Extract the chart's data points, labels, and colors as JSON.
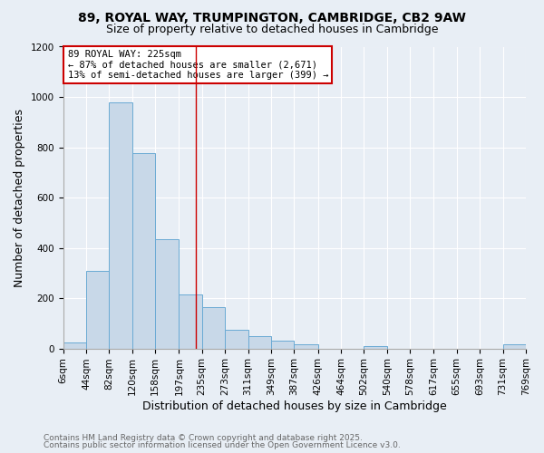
{
  "title1": "89, ROYAL WAY, TRUMPINGTON, CAMBRIDGE, CB2 9AW",
  "title2": "Size of property relative to detached houses in Cambridge",
  "xlabel": "Distribution of detached houses by size in Cambridge",
  "ylabel": "Number of detached properties",
  "bin_edges": [
    6,
    44,
    82,
    120,
    158,
    197,
    235,
    273,
    311,
    349,
    387,
    426,
    464,
    502,
    540,
    578,
    617,
    655,
    693,
    731,
    769
  ],
  "bar_heights": [
    25,
    310,
    980,
    775,
    435,
    215,
    165,
    75,
    50,
    30,
    15,
    0,
    0,
    10,
    0,
    0,
    0,
    0,
    0,
    15
  ],
  "bar_color": "#c8d8e8",
  "bar_edge_color": "#6aaad4",
  "background_color": "#e8eef5",
  "red_line_x": 225,
  "annotation_line1": "89 ROYAL WAY: 225sqm",
  "annotation_line2": "← 87% of detached houses are smaller (2,671)",
  "annotation_line3": "13% of semi-detached houses are larger (399) →",
  "annotation_box_color": "#ffffff",
  "annotation_box_edge_color": "#cc0000",
  "ylim": [
    0,
    1200
  ],
  "yticks": [
    0,
    200,
    400,
    600,
    800,
    1000,
    1200
  ],
  "footer1": "Contains HM Land Registry data © Crown copyright and database right 2025.",
  "footer2": "Contains public sector information licensed under the Open Government Licence v3.0.",
  "title1_fontsize": 10,
  "title2_fontsize": 9,
  "axis_label_fontsize": 9,
  "tick_fontsize": 7.5,
  "annotation_fontsize": 7.5,
  "footer_fontsize": 6.5
}
